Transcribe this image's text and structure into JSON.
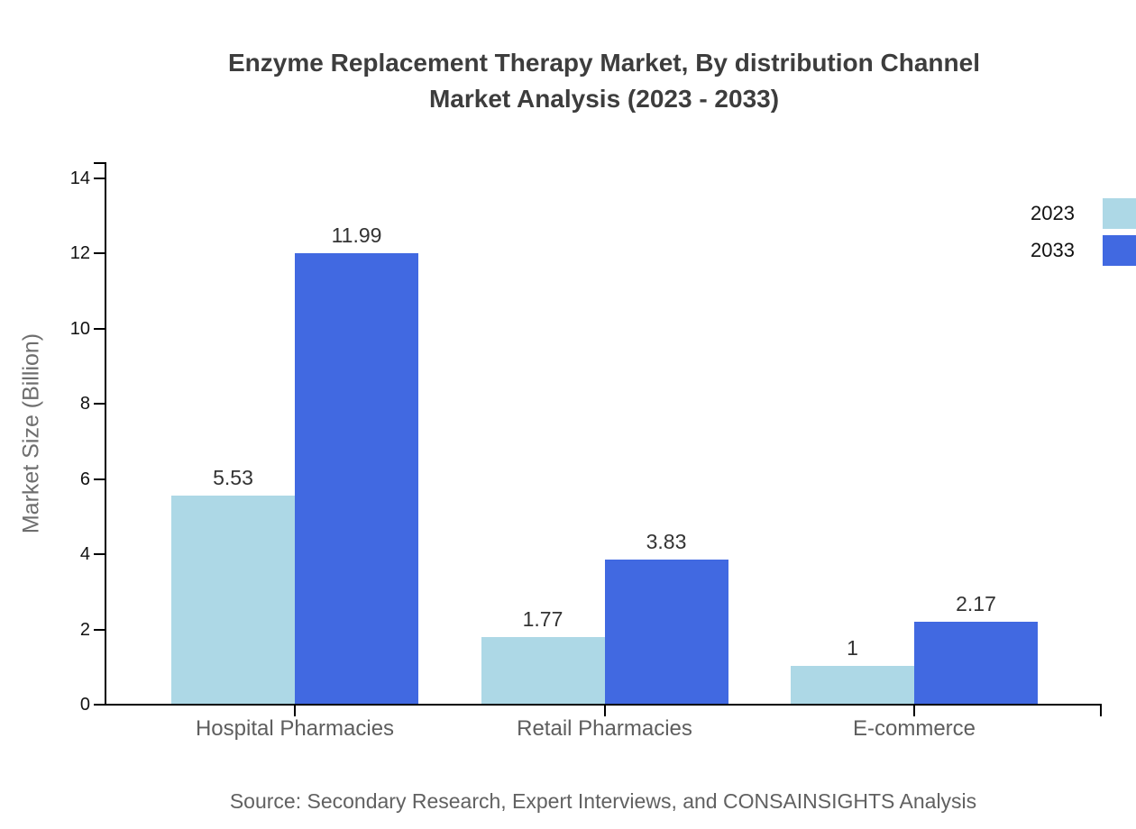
{
  "title": {
    "line1": "Enzyme Replacement Therapy Market, By distribution Channel",
    "line2": "Market Analysis (2023 - 2033)"
  },
  "y_axis": {
    "label": "Market Size (Billion)",
    "ticks": [
      0,
      2,
      4,
      6,
      8,
      10,
      12,
      14
    ]
  },
  "legend": [
    {
      "label": "2023",
      "color": "#ADD8E6"
    },
    {
      "label": "2033",
      "color": "#4169E1"
    }
  ],
  "source": "Source: Secondary Research, Expert Interviews, and CONSAINSIGHTS Analysis",
  "chart_data": {
    "type": "bar",
    "title": "Enzyme Replacement Therapy Market, By distribution Channel Market Analysis (2023 - 2033)",
    "categories": [
      "Hospital Pharmacies",
      "Retail Pharmacies",
      "E-commerce"
    ],
    "series": [
      {
        "name": "2023",
        "color": "#ADD8E6",
        "values": [
          5.53,
          1.77,
          1
        ]
      },
      {
        "name": "2033",
        "color": "#4169E1",
        "values": [
          11.99,
          3.83,
          2.17
        ]
      }
    ],
    "xlabel": "",
    "ylabel": "Market Size (Billion)",
    "ylim": [
      0,
      14
    ],
    "ytick_step": 2,
    "grid": false,
    "legend_position": "top-right",
    "value_labels_shown": true
  }
}
